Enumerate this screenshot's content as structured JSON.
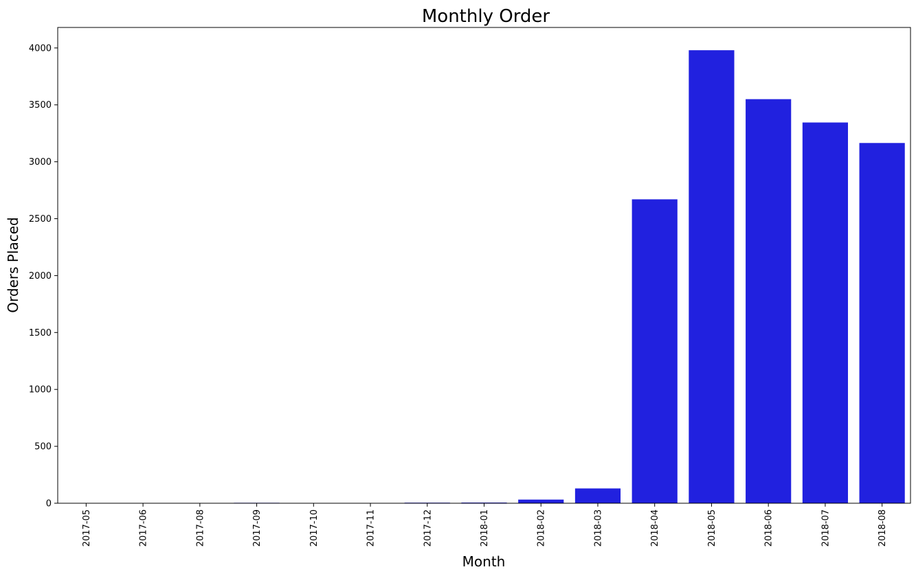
{
  "chart_data": {
    "type": "bar",
    "title": "Monthly Order",
    "xlabel": "Month",
    "ylabel": "Orders Placed",
    "categories": [
      "2017-05",
      "2017-06",
      "2017-08",
      "2017-09",
      "2017-10",
      "2017-11",
      "2017-12",
      "2018-01",
      "2018-02",
      "2018-03",
      "2018-04",
      "2018-05",
      "2018-06",
      "2018-07",
      "2018-08"
    ],
    "values": [
      2,
      3,
      1,
      4,
      3,
      2,
      5,
      6,
      32,
      130,
      2670,
      3980,
      3550,
      3345,
      3165
    ],
    "ylim": [
      0,
      4180
    ],
    "yticks": [
      0,
      500,
      1000,
      1500,
      2000,
      2500,
      3000,
      3500,
      4000
    ],
    "ytick_labels": [
      "0",
      "500",
      "1000",
      "1500",
      "2000",
      "2500",
      "3000",
      "3500",
      "4000"
    ],
    "bar_color": "#2121df",
    "grid": false,
    "legend": "none"
  }
}
